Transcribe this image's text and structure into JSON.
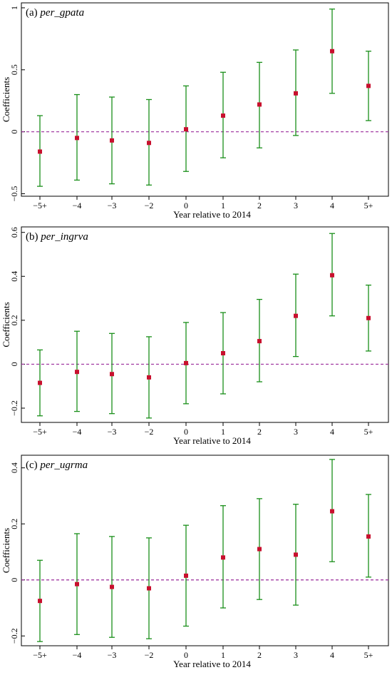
{
  "chart_data": [
    {
      "type": "scatter",
      "panel_label": "(a)",
      "variable": "per_gpata",
      "xlabel": "Year relative to 2014",
      "ylabel": "Coefficients",
      "categories": [
        "−5+",
        "−4",
        "−3",
        "−2",
        "0",
        "1",
        "2",
        "3",
        "4",
        "5+"
      ],
      "yticks": [
        -0.5,
        0,
        0.5,
        1
      ],
      "ytick_labels": [
        "−0.5",
        "0",
        "0.5",
        "1"
      ],
      "ylim": [
        -0.52,
        1.04
      ],
      "reference_line": 0,
      "series": [
        {
          "estimate": [
            -0.16,
            -0.05,
            -0.07,
            -0.09,
            0.02,
            0.13,
            0.22,
            0.31,
            0.65,
            0.37
          ],
          "lower": [
            -0.44,
            -0.39,
            -0.42,
            -0.43,
            -0.32,
            -0.21,
            -0.13,
            -0.03,
            0.31,
            0.09
          ],
          "upper": [
            0.13,
            0.3,
            0.28,
            0.26,
            0.37,
            0.48,
            0.56,
            0.66,
            0.99,
            0.65
          ]
        }
      ]
    },
    {
      "type": "scatter",
      "panel_label": "(b)",
      "variable": "per_ingrva",
      "xlabel": "Year relative to 2014",
      "ylabel": "Coefficients",
      "categories": [
        "−5+",
        "−4",
        "−3",
        "−2",
        "0",
        "1",
        "2",
        "3",
        "4",
        "5+"
      ],
      "yticks": [
        -0.2,
        0,
        0.2,
        0.4,
        0.6
      ],
      "ytick_labels": [
        "−0.2",
        "0",
        "0.2",
        "0.4",
        "0.6"
      ],
      "ylim": [
        -0.265,
        0.625
      ],
      "reference_line": 0,
      "series": [
        {
          "estimate": [
            -0.085,
            -0.035,
            -0.045,
            -0.06,
            0.005,
            0.05,
            0.105,
            0.22,
            0.405,
            0.21
          ],
          "lower": [
            -0.235,
            -0.215,
            -0.225,
            -0.245,
            -0.18,
            -0.135,
            -0.08,
            0.035,
            0.22,
            0.06
          ],
          "upper": [
            0.065,
            0.15,
            0.14,
            0.125,
            0.19,
            0.235,
            0.295,
            0.41,
            0.595,
            0.36
          ]
        }
      ]
    },
    {
      "type": "scatter",
      "panel_label": "(c)",
      "variable": "per_ugrma",
      "xlabel": "Year relative to 2014",
      "ylabel": "Coefficients",
      "categories": [
        "−5+",
        "−4",
        "−3",
        "−2",
        "0",
        "1",
        "2",
        "3",
        "4",
        "5+"
      ],
      "yticks": [
        -0.2,
        0,
        0.2,
        0.4
      ],
      "ytick_labels": [
        "−0.2",
        "0",
        "0.2",
        "0.4"
      ],
      "ylim": [
        -0.235,
        0.445
      ],
      "reference_line": 0,
      "series": [
        {
          "estimate": [
            -0.075,
            -0.015,
            -0.025,
            -0.03,
            0.015,
            0.08,
            0.11,
            0.09,
            0.245,
            0.155
          ],
          "lower": [
            -0.22,
            -0.195,
            -0.205,
            -0.21,
            -0.165,
            -0.1,
            -0.07,
            -0.09,
            0.065,
            0.01
          ],
          "upper": [
            0.07,
            0.165,
            0.155,
            0.15,
            0.195,
            0.265,
            0.29,
            0.27,
            0.43,
            0.305
          ]
        }
      ]
    }
  ],
  "colors": {
    "point": "#c8102e",
    "error_bar": "#1a8f1a",
    "reference_line": "#9b2a9b",
    "axis": "#000000"
  }
}
